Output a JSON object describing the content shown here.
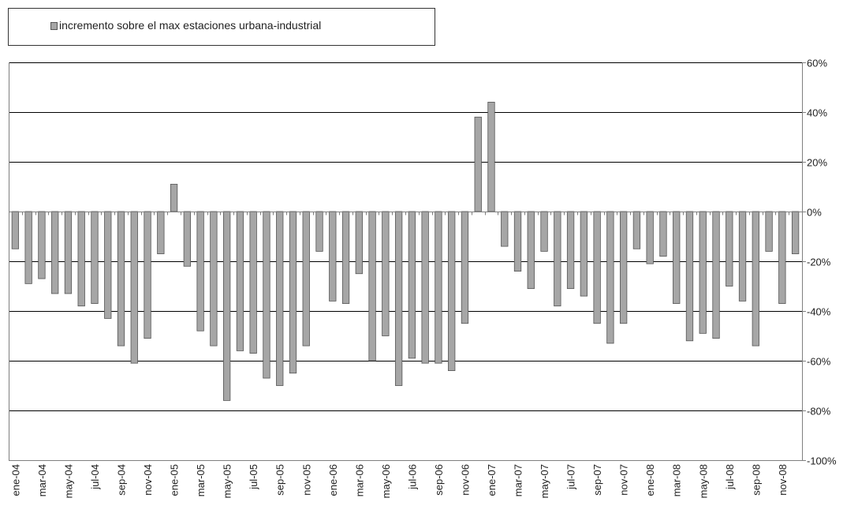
{
  "legend": {
    "label": "incremento sobre el max estaciones urbana-industrial"
  },
  "colors": {
    "bar_fill": "#a6a6a6",
    "bar_stroke": "#555555",
    "grid": "#000000",
    "axis": "#7f7f7f"
  },
  "chart_data": {
    "type": "bar",
    "ylim": [
      -1.0,
      0.6
    ],
    "yticks": [
      0.6,
      0.4,
      0.2,
      0.0,
      -0.2,
      -0.4,
      -0.6,
      -0.8,
      -1.0
    ],
    "ytick_labels": [
      "60%",
      "40%",
      "20%",
      "0%",
      "-20%",
      "-40%",
      "-60%",
      "-80%",
      "-100%"
    ],
    "grid": true,
    "legend_position": "top-left",
    "series": [
      {
        "name": "incremento sobre el max estaciones urbana-industrial",
        "values": [
          -0.15,
          -0.29,
          -0.27,
          -0.33,
          -0.33,
          -0.38,
          -0.37,
          -0.43,
          -0.54,
          -0.61,
          -0.51,
          -0.17,
          0.11,
          -0.22,
          -0.48,
          -0.54,
          -0.76,
          -0.56,
          -0.57,
          -0.67,
          -0.7,
          -0.65,
          -0.54,
          -0.16,
          -0.36,
          -0.37,
          -0.25,
          -0.6,
          -0.5,
          -0.7,
          -0.59,
          -0.61,
          -0.61,
          -0.64,
          -0.45,
          0.38,
          0.44,
          -0.14,
          -0.24,
          -0.31,
          -0.16,
          -0.38,
          -0.31,
          -0.34,
          -0.45,
          -0.53,
          -0.45,
          -0.15,
          -0.21,
          -0.18,
          -0.37,
          -0.52,
          -0.49,
          -0.51,
          -0.3,
          -0.36,
          -0.54,
          -0.16,
          -0.37,
          -0.17
        ]
      }
    ],
    "categories": [
      "ene-04",
      "feb-04",
      "mar-04",
      "abr-04",
      "may-04",
      "jun-04",
      "jul-04",
      "ago-04",
      "sep-04",
      "oct-04",
      "nov-04",
      "dic-04",
      "ene-05",
      "feb-05",
      "mar-05",
      "abr-05",
      "may-05",
      "jun-05",
      "jul-05",
      "ago-05",
      "sep-05",
      "oct-05",
      "nov-05",
      "dic-05",
      "ene-06",
      "feb-06",
      "mar-06",
      "abr-06",
      "may-06",
      "jun-06",
      "jul-06",
      "ago-06",
      "sep-06",
      "oct-06",
      "nov-06",
      "dic-06",
      "ene-07",
      "feb-07",
      "mar-07",
      "abr-07",
      "may-07",
      "jun-07",
      "jul-07",
      "ago-07",
      "sep-07",
      "oct-07",
      "nov-07",
      "dic-07",
      "ene-08",
      "feb-08",
      "mar-08",
      "abr-08",
      "may-08",
      "jun-08",
      "jul-08",
      "ago-08",
      "sep-08",
      "oct-08",
      "nov-08",
      "dic-08"
    ],
    "x_tick_labels": [
      "ene-04",
      "mar-04",
      "may-04",
      "jul-04",
      "sep-04",
      "nov-04",
      "ene-05",
      "mar-05",
      "may-05",
      "jul-05",
      "sep-05",
      "nov-05",
      "ene-06",
      "mar-06",
      "may-06",
      "jul-06",
      "sep-06",
      "nov-06",
      "ene-07",
      "mar-07",
      "may-07",
      "jul-07",
      "sep-07",
      "nov-07",
      "ene-08",
      "mar-08",
      "may-08",
      "jul-08",
      "sep-08",
      "nov-08"
    ]
  }
}
